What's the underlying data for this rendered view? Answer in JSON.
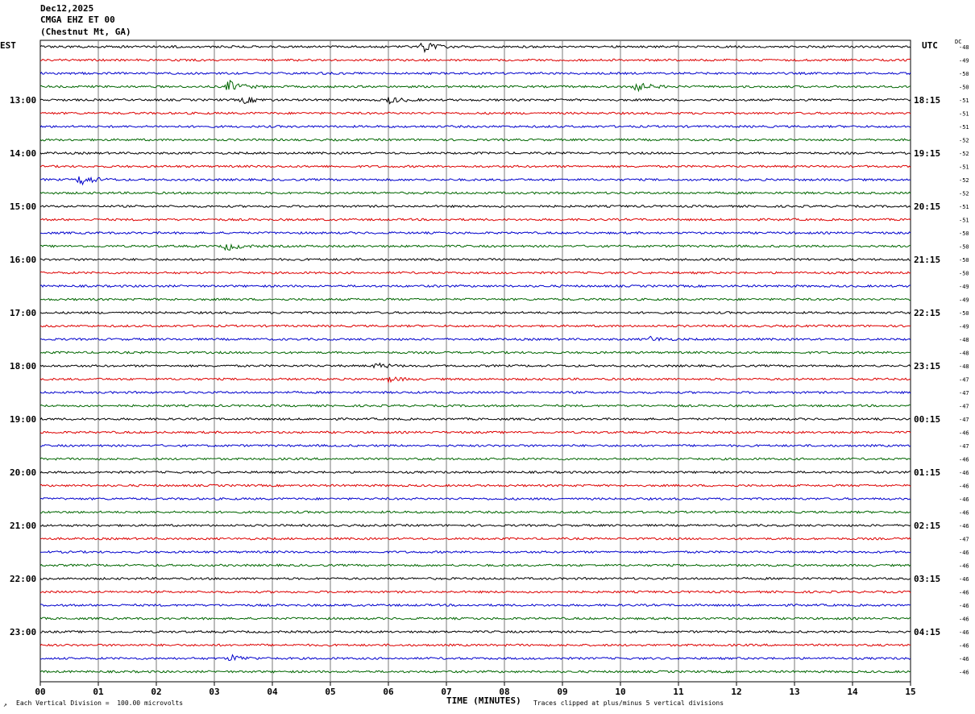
{
  "header": {
    "date": "Dec12,2025",
    "station": "CMGA EHZ ET 00",
    "location": "(Chestnut Mt, GA)"
  },
  "left_timezone": "EST",
  "right_timezone": "UTC",
  "dc_label": "DC",
  "chart_data": {
    "type": "line",
    "xlabel": "TIME (MINUTES)",
    "x_ticks": [
      "00",
      "01",
      "02",
      "03",
      "04",
      "05",
      "06",
      "07",
      "08",
      "09",
      "10",
      "11",
      "12",
      "13",
      "14",
      "15"
    ],
    "xlim": [
      0,
      15
    ],
    "grid": true,
    "trace_colors": [
      "#000000",
      "#dd0000",
      "#0000cc",
      "#006600"
    ],
    "left_hour_labels": [
      "13:00",
      "14:00",
      "15:00",
      "16:00",
      "17:00",
      "18:00",
      "19:00",
      "20:00",
      "21:00",
      "22:00",
      "23:00"
    ],
    "right_hour_labels": [
      "18:15",
      "19:15",
      "20:15",
      "21:15",
      "22:15",
      "23:15",
      "00:15",
      "01:15",
      "02:15",
      "03:15",
      "04:15"
    ],
    "dc_offsets": [
      "-48",
      "-49",
      "-50",
      "-50",
      "-51",
      "-51",
      "-51",
      "-52",
      "-52",
      "-51",
      "-52",
      "-52",
      "-51",
      "-51",
      "-50",
      "-50",
      "-50",
      "-50",
      "-49",
      "-49",
      "-50",
      "-49",
      "-48",
      "-48",
      "-48",
      "-47",
      "-47",
      "-47",
      "-47",
      "-46",
      "-47",
      "-46",
      "-46",
      "-46",
      "-46",
      "-46",
      "-46",
      "-47",
      "-46",
      "-46",
      "-46",
      "-46",
      "-46",
      "-46",
      "-46",
      "-46",
      "-46",
      "-46"
    ],
    "events": [
      {
        "trace": 0,
        "minute": 6.6,
        "amp": 6
      },
      {
        "trace": 3,
        "minute": 3.25,
        "amp": 7
      },
      {
        "trace": 3,
        "minute": 10.2,
        "amp": 8
      },
      {
        "trace": 4,
        "minute": 3.5,
        "amp": 4
      },
      {
        "trace": 4,
        "minute": 6.0,
        "amp": 4
      },
      {
        "trace": 10,
        "minute": 0.7,
        "amp": 7
      },
      {
        "trace": 15,
        "minute": 3.2,
        "amp": 5
      },
      {
        "trace": 22,
        "minute": 10.5,
        "amp": 3
      },
      {
        "trace": 24,
        "minute": 5.8,
        "amp": 3
      },
      {
        "trace": 25,
        "minute": 6.0,
        "amp": 3
      },
      {
        "trace": 46,
        "minute": 3.3,
        "amp": 4
      }
    ]
  },
  "footer": {
    "scale_note": "Each Vertical Division =  100.00 microvolts",
    "clip_note": "Traces clipped at plus/minus 5 vertical divisions"
  }
}
